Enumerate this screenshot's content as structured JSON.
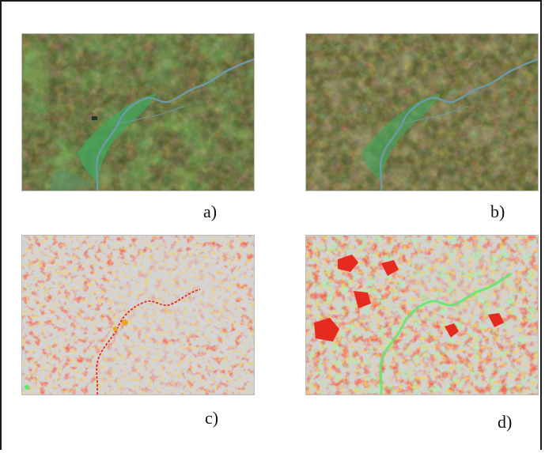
{
  "figure": {
    "panels": [
      {
        "id": "a",
        "caption": "a)",
        "kind": "satellite-image",
        "colors": {
          "base": "#4d5527",
          "river": "#5f8f9b",
          "vegetation": "#3ea55c"
        }
      },
      {
        "id": "b",
        "caption": "b)",
        "kind": "satellite-image",
        "colors": {
          "base": "#4d5527",
          "river": "#5f8f9b",
          "vegetation": "#3ea55c"
        }
      },
      {
        "id": "c",
        "caption": "c)",
        "kind": "change-map",
        "colors": {
          "background": "#d4d4d4",
          "class1": "#e52a1f",
          "class2": "#f0a418",
          "class3": "#5fe86e"
        }
      },
      {
        "id": "d",
        "caption": "d)",
        "kind": "change-map",
        "colors": {
          "background": "#d2d2d2",
          "class1": "#e52a1f",
          "class2": "#f0a418",
          "class3": "#5fe86e"
        }
      }
    ]
  }
}
